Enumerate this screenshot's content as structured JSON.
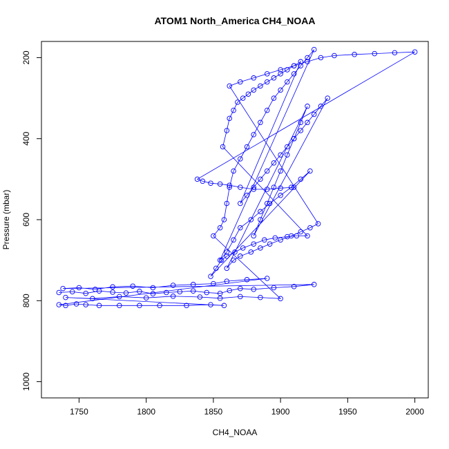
{
  "chart_data": {
    "type": "scatter",
    "title": "ATOM1 North_America CH4_NOAA",
    "xlabel": "CH4_NOAA",
    "ylabel": "Pressure (mbar)",
    "xlim": [
      1722,
      2010
    ],
    "ylim": [
      1040,
      160
    ],
    "y_reversed": true,
    "grid": false,
    "legend": "none",
    "x_ticks": [
      1750,
      1800,
      1850,
      1900,
      1950,
      2000
    ],
    "y_ticks": [
      200,
      400,
      600,
      800,
      1000
    ],
    "x_tick_labels": [
      "1750",
      "1800",
      "1850",
      "1900",
      "1950",
      "2000"
    ],
    "y_tick_labels": [
      "200",
      "400",
      "600",
      "800",
      "1000"
    ],
    "series": [
      {
        "color": "#0000ff",
        "marker": "open-circle",
        "connected": true,
        "x": [
          1735,
          1745,
          1755,
          1765,
          1775,
          1785,
          1795,
          1805,
          1815,
          1825,
          1835,
          1845,
          1855,
          1862,
          1870,
          1880,
          1895,
          1910,
          1925,
          1738,
          1750,
          1762,
          1775,
          1790,
          1805,
          1820,
          1835,
          1850,
          1860,
          1875,
          1890,
          1735,
          1740,
          1748,
          1755,
          1765,
          1780,
          1795,
          1810,
          1830,
          1848,
          1858,
          1740,
          1760,
          1780,
          1800,
          1820,
          1840,
          1855,
          1870,
          1885,
          1900,
          1850,
          1855,
          1858,
          1860,
          1862,
          1865,
          1870,
          1875,
          1880,
          1885,
          1890,
          1895,
          1900,
          1905,
          1910,
          1915,
          1920,
          1925,
          1855,
          1860,
          1865,
          1870,
          1878,
          1885,
          1892,
          1900,
          1908,
          1915,
          1922,
          1848,
          1852,
          1856,
          1860,
          1866,
          1872,
          1880,
          1888,
          1896,
          1905,
          1912,
          1920,
          1857,
          1860,
          1862,
          1865,
          1868,
          1872,
          1876,
          1880,
          1885,
          1890,
          1895,
          1900,
          1905,
          1910,
          1915,
          1870,
          1875,
          1880,
          1885,
          1890,
          1895,
          1900,
          1905,
          1910,
          1915,
          1920,
          1925,
          1930,
          1935,
          1880,
          1885,
          1890,
          1895,
          1900,
          1905,
          1910,
          1915,
          1920,
          1860,
          1865,
          1870,
          1878,
          1885,
          1892,
          1900,
          1908,
          1915,
          1922,
          1928,
          1862,
          1870,
          1880,
          1890,
          1900,
          1910,
          1920,
          1930,
          1940,
          1955,
          1970,
          1985,
          2000,
          1838,
          1842,
          1848,
          1855,
          1862,
          1870,
          1880,
          1890,
          1900,
          1910
        ],
        "y": [
          780,
          778,
          782,
          776,
          779,
          781,
          777,
          783,
          780,
          778,
          776,
          780,
          782,
          775,
          770,
          772,
          768,
          765,
          760,
          770,
          768,
          772,
          766,
          764,
          768,
          762,
          760,
          758,
          752,
          748,
          745,
          810,
          812,
          808,
          810,
          812,
          812,
          812,
          812,
          812,
          810,
          812,
          792,
          795,
          790,
          793,
          789,
          791,
          794,
          790,
          792,
          795,
          640,
          620,
          600,
          560,
          520,
          480,
          450,
          420,
          390,
          360,
          330,
          300,
          280,
          260,
          240,
          220,
          200,
          180,
          700,
          680,
          650,
          620,
          600,
          580,
          560,
          540,
          520,
          500,
          480,
          740,
          720,
          700,
          690,
          680,
          670,
          660,
          650,
          645,
          642,
          640,
          640,
          420,
          380,
          350,
          330,
          310,
          300,
          290,
          280,
          270,
          260,
          250,
          240,
          230,
          220,
          210,
          560,
          540,
          520,
          500,
          480,
          460,
          440,
          420,
          400,
          380,
          360,
          340,
          320,
          300,
          640,
          600,
          560,
          520,
          480,
          440,
          400,
          360,
          320,
          720,
          700,
          690,
          680,
          670,
          660,
          650,
          640,
          630,
          620,
          610,
          270,
          260,
          250,
          240,
          230,
          220,
          210,
          200,
          195,
          192,
          190,
          188,
          186,
          500,
          505,
          510,
          512,
          515,
          520,
          525,
          525,
          522,
          520
        ]
      }
    ]
  }
}
